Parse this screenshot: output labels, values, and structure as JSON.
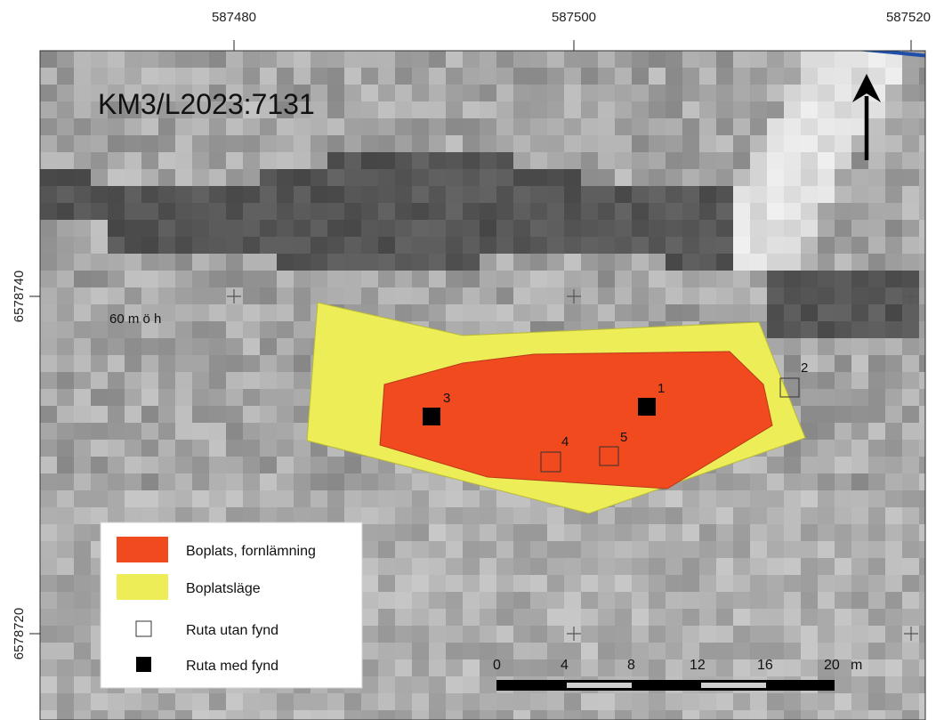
{
  "map": {
    "title": "KM3/L2023:7131",
    "elevation_label": "60 m ö h",
    "x_ticks": [
      "587480",
      "587500",
      "587520"
    ],
    "y_ticks": [
      "6578740",
      "6578720"
    ],
    "north_arrow": "north-arrow-icon"
  },
  "pits": [
    {
      "label": "1",
      "has_finds": true
    },
    {
      "label": "2",
      "has_finds": false
    },
    {
      "label": "3",
      "has_finds": true
    },
    {
      "label": "4",
      "has_finds": false
    },
    {
      "label": "5",
      "has_finds": false
    }
  ],
  "legend": {
    "items": [
      {
        "label": "Boplats, fornlämning",
        "color": "#f04a1e"
      },
      {
        "label": "Boplatsläge",
        "color": "#eced57"
      },
      {
        "label": "Ruta utan fynd",
        "symbol": "open-square"
      },
      {
        "label": "Ruta med fynd",
        "symbol": "filled-square"
      }
    ]
  },
  "scale_bar": {
    "labels": [
      "0",
      "4",
      "8",
      "12",
      "16",
      "20"
    ],
    "unit": "m"
  },
  "colors": {
    "site_fill": "#f04a1e",
    "zone_fill": "#eced57",
    "stream": "#1f4fa8"
  }
}
